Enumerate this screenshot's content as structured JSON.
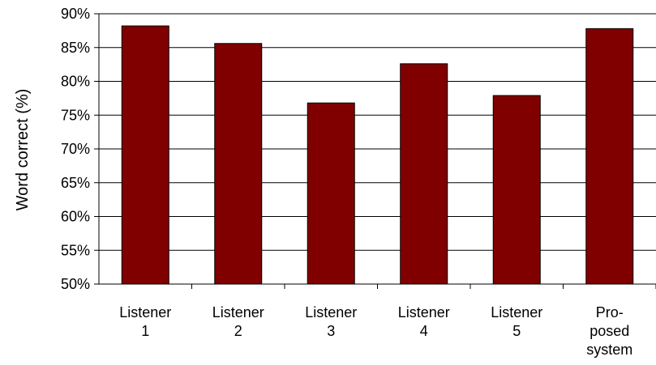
{
  "chart_data": {
    "type": "bar",
    "categories": [
      [
        "Listener",
        "1"
      ],
      [
        "Listener",
        "2"
      ],
      [
        "Listener",
        "3"
      ],
      [
        "Listener",
        "4"
      ],
      [
        "Listener",
        "5"
      ],
      [
        "Pro-",
        "posed",
        "system"
      ]
    ],
    "values": [
      88.2,
      85.6,
      76.8,
      82.6,
      77.9,
      87.8
    ],
    "ylabel": "Word correct (%)",
    "xlabel": "",
    "title": "",
    "ylim": [
      50,
      90
    ],
    "yticks": [
      50,
      55,
      60,
      65,
      70,
      75,
      80,
      85,
      90
    ],
    "ytick_labels": [
      "50%",
      "55%",
      "60%",
      "65%",
      "70%",
      "75%",
      "80%",
      "85%",
      "90%"
    ],
    "grid": "horizontal",
    "legend": "none",
    "bar_color": "#800000"
  }
}
